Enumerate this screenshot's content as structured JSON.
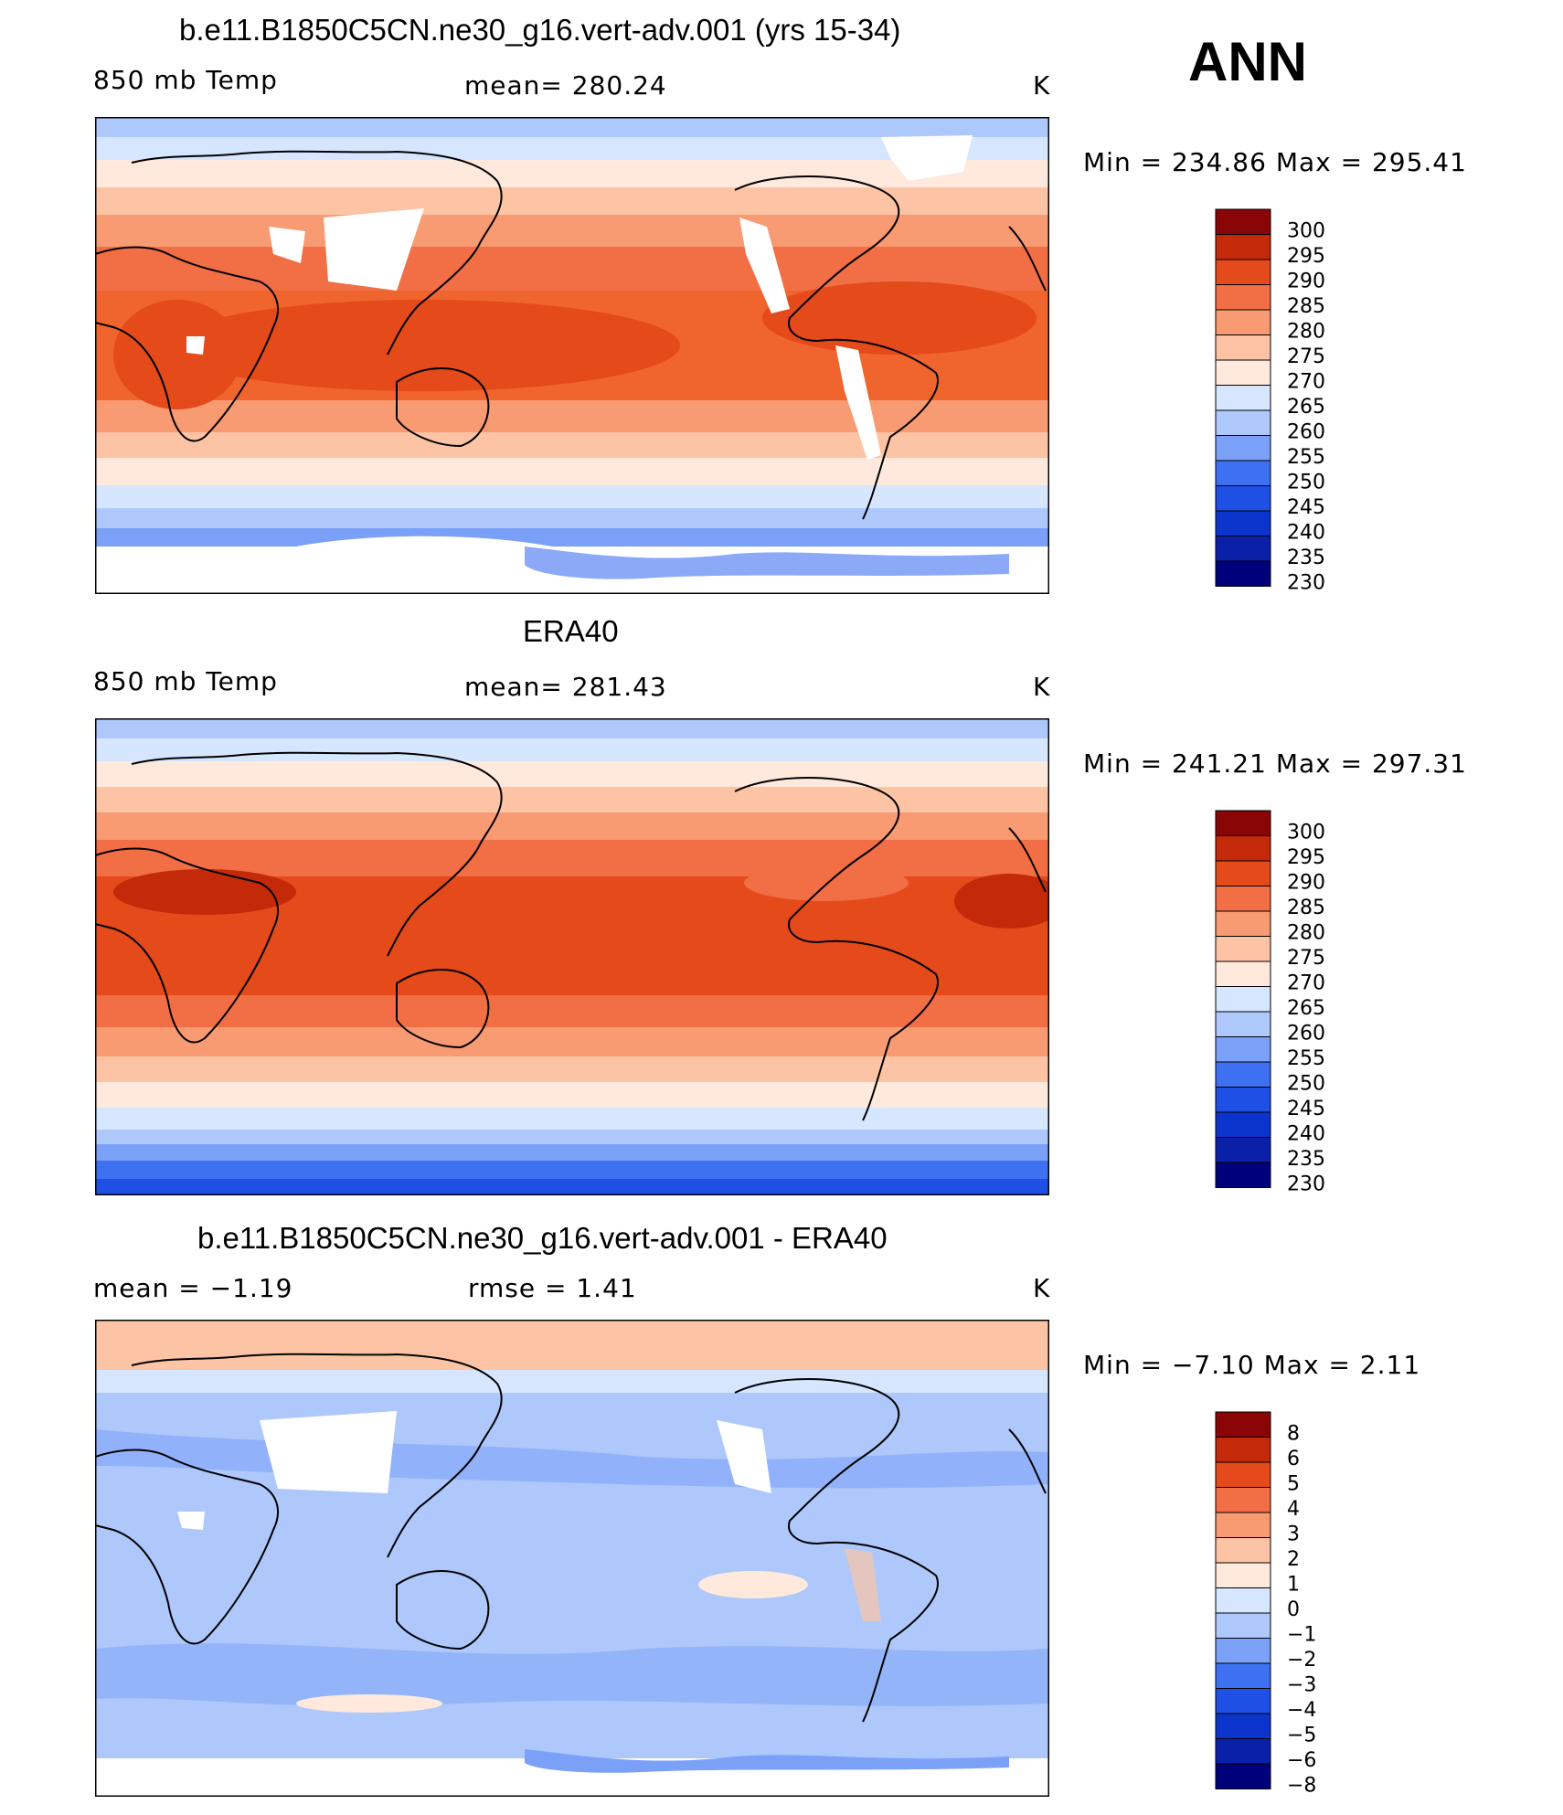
{
  "season": "ANN",
  "panels": [
    {
      "id": "model",
      "title": "b.e11.B1850C5CN.ne30_g16.vert-adv.001 (yrs 15-34)",
      "left_label": "850 mb Temp",
      "center_label": "mean=  280.24",
      "units": "K",
      "stats": "Min  =  234.86  Max  =  295.41",
      "colorbar_labels": [
        "300",
        "295",
        "290",
        "285",
        "280",
        "275",
        "270",
        "265",
        "260",
        "255",
        "250",
        "245",
        "240",
        "235",
        "230"
      ]
    },
    {
      "id": "obs",
      "title": "ERA40",
      "left_label": "850 mb Temp",
      "center_label": "mean=  281.43",
      "units": "K",
      "stats": "Min  =  241.21  Max  =  297.31",
      "colorbar_labels": [
        "300",
        "295",
        "290",
        "285",
        "280",
        "275",
        "270",
        "265",
        "260",
        "255",
        "250",
        "245",
        "240",
        "235",
        "230"
      ]
    },
    {
      "id": "diff",
      "title": "b.e11.B1850C5CN.ne30_g16.vert-adv.001 - ERA40",
      "left_label": "mean  =    −1.19",
      "center_label": "rmse  =     1.41",
      "units": "K",
      "stats": "Min  =    −7.10  Max  =     2.11",
      "colorbar_labels": [
        "8",
        "6",
        "5",
        "4",
        "3",
        "2",
        "1",
        "0",
        "−1",
        "−2",
        "−3",
        "−4",
        "−5",
        "−6",
        "−8"
      ]
    }
  ],
  "chart_data": [
    {
      "type": "heatmap",
      "title": "b.e11.B1850C5CN.ne30_g16.vert-adv.001 (yrs 15-34)",
      "variable": "850 mb Temp",
      "units": "K",
      "mean": 280.24,
      "min": 234.86,
      "max": 295.41,
      "contour_levels": [
        230,
        235,
        240,
        245,
        250,
        255,
        260,
        265,
        270,
        275,
        280,
        285,
        290,
        295,
        300
      ],
      "approx_zonal_band_values": {
        "lat": [
          85,
          70,
          60,
          50,
          40,
          30,
          20,
          0,
          -20,
          -30,
          -40,
          -50,
          -60,
          -70
        ],
        "value": [
          257,
          263,
          268,
          273,
          278,
          283,
          288,
          292,
          288,
          283,
          277,
          270,
          262,
          250
        ]
      }
    },
    {
      "type": "heatmap",
      "title": "ERA40",
      "variable": "850 mb Temp",
      "units": "K",
      "mean": 281.43,
      "min": 241.21,
      "max": 297.31,
      "contour_levels": [
        230,
        235,
        240,
        245,
        250,
        255,
        260,
        265,
        270,
        275,
        280,
        285,
        290,
        295,
        300
      ],
      "approx_zonal_band_values": {
        "lat": [
          85,
          70,
          60,
          50,
          40,
          30,
          20,
          0,
          -20,
          -30,
          -40,
          -50,
          -60,
          -70
        ],
        "value": [
          257,
          262,
          268,
          273,
          279,
          285,
          292,
          293,
          290,
          284,
          278,
          271,
          263,
          245
        ]
      }
    },
    {
      "type": "heatmap",
      "title": "b.e11.B1850C5CN.ne30_g16.vert-adv.001 - ERA40",
      "units": "K",
      "mean": -1.19,
      "rmse": 1.41,
      "min": -7.1,
      "max": 2.11,
      "contour_levels": [
        -8,
        -6,
        -5,
        -4,
        -3,
        -2,
        -1,
        0,
        1,
        2,
        3,
        4,
        5,
        6,
        8
      ],
      "approx_zonal_band_values": {
        "lat": [
          85,
          70,
          50,
          30,
          10,
          -10,
          -30,
          -50,
          -65
        ],
        "value": [
          0.5,
          0.3,
          -0.8,
          -1.3,
          -1.5,
          -1.5,
          -1.3,
          -1.0,
          -1.5
        ]
      }
    }
  ],
  "colors": {
    "temp": [
      "#00007a",
      "#0a20a8",
      "#0b34cc",
      "#1e50e6",
      "#3e70f2",
      "#7aa0f8",
      "#aec8fc",
      "#d6e6fe",
      "#ffe9dc",
      "#fcc4a4",
      "#f89a72",
      "#f26e44",
      "#e44a1a",
      "#c42a0a",
      "#8a0606"
    ],
    "missing": "#ffffff",
    "land_outline": "#000000"
  }
}
